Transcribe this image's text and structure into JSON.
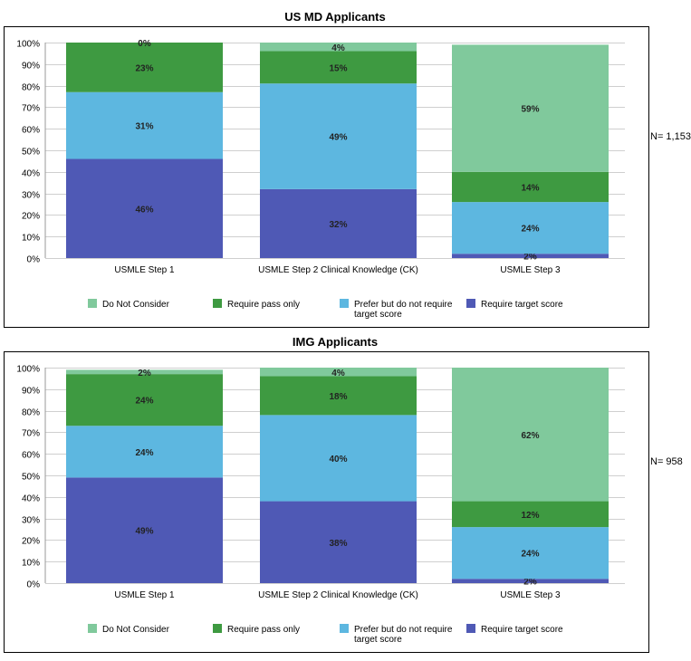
{
  "chart_data": [
    {
      "type": "bar",
      "stacked": true,
      "title": "US MD Applicants",
      "n_label": "N= 1,153",
      "categories": [
        "USMLE Step 1",
        "USMLE Step 2 Clinical Knowledge (CK)",
        "USMLE Step 3"
      ],
      "ylim": [
        0,
        100
      ],
      "y_ticks": [
        "0%",
        "10%",
        "20%",
        "30%",
        "40%",
        "50%",
        "60%",
        "70%",
        "80%",
        "90%",
        "100%"
      ],
      "grid": true,
      "legend_position": "bottom",
      "series": [
        {
          "name": "Require target score",
          "color": "#4f59b5",
          "values": [
            46,
            32,
            2
          ],
          "labels": [
            "46%",
            "32%",
            "2%"
          ]
        },
        {
          "name": "Prefer but do not require target score",
          "color": "#5db7e0",
          "values": [
            31,
            49,
            24
          ],
          "labels": [
            "31%",
            "49%",
            "24%"
          ]
        },
        {
          "name": "Require pass only",
          "color": "#3e9a41",
          "values": [
            23,
            15,
            14
          ],
          "labels": [
            "23%",
            "15%",
            "14%"
          ]
        },
        {
          "name": "Do Not Consider",
          "color": "#80c99c",
          "values": [
            0,
            4,
            59
          ],
          "labels": [
            "0%",
            "4%",
            "59%"
          ]
        }
      ],
      "legend": [
        {
          "lines": [
            "Do Not Consider"
          ],
          "color": "#80c99c"
        },
        {
          "lines": [
            "Require pass only"
          ],
          "color": "#3e9a41"
        },
        {
          "lines": [
            "Prefer but do not require",
            "target score"
          ],
          "color": "#5db7e0"
        },
        {
          "lines": [
            "Require target score"
          ],
          "color": "#4f59b5"
        }
      ]
    },
    {
      "type": "bar",
      "stacked": true,
      "title": "IMG Applicants",
      "n_label": "N= 958",
      "categories": [
        "USMLE Step 1",
        "USMLE Step 2 Clinical Knowledge (CK)",
        "USMLE Step 3"
      ],
      "ylim": [
        0,
        100
      ],
      "y_ticks": [
        "0%",
        "10%",
        "20%",
        "30%",
        "40%",
        "50%",
        "60%",
        "70%",
        "80%",
        "90%",
        "100%"
      ],
      "grid": true,
      "legend_position": "bottom",
      "series": [
        {
          "name": "Require target score",
          "color": "#4f59b5",
          "values": [
            49,
            38,
            2
          ],
          "labels": [
            "49%",
            "38%",
            "2%"
          ]
        },
        {
          "name": "Prefer but do not require target score",
          "color": "#5db7e0",
          "values": [
            24,
            40,
            24
          ],
          "labels": [
            "24%",
            "40%",
            "24%"
          ]
        },
        {
          "name": "Require pass only",
          "color": "#3e9a41",
          "values": [
            24,
            18,
            12
          ],
          "labels": [
            "24%",
            "18%",
            "12%"
          ]
        },
        {
          "name": "Do Not Consider",
          "color": "#80c99c",
          "values": [
            2,
            4,
            62
          ],
          "labels": [
            "2%",
            "4%",
            "62%"
          ]
        }
      ],
      "legend": [
        {
          "lines": [
            "Do Not Consider"
          ],
          "color": "#80c99c"
        },
        {
          "lines": [
            "Require pass only"
          ],
          "color": "#3e9a41"
        },
        {
          "lines": [
            "Prefer but do not require",
            "target score"
          ],
          "color": "#5db7e0"
        },
        {
          "lines": [
            "Require target score"
          ],
          "color": "#4f59b5"
        }
      ]
    }
  ]
}
